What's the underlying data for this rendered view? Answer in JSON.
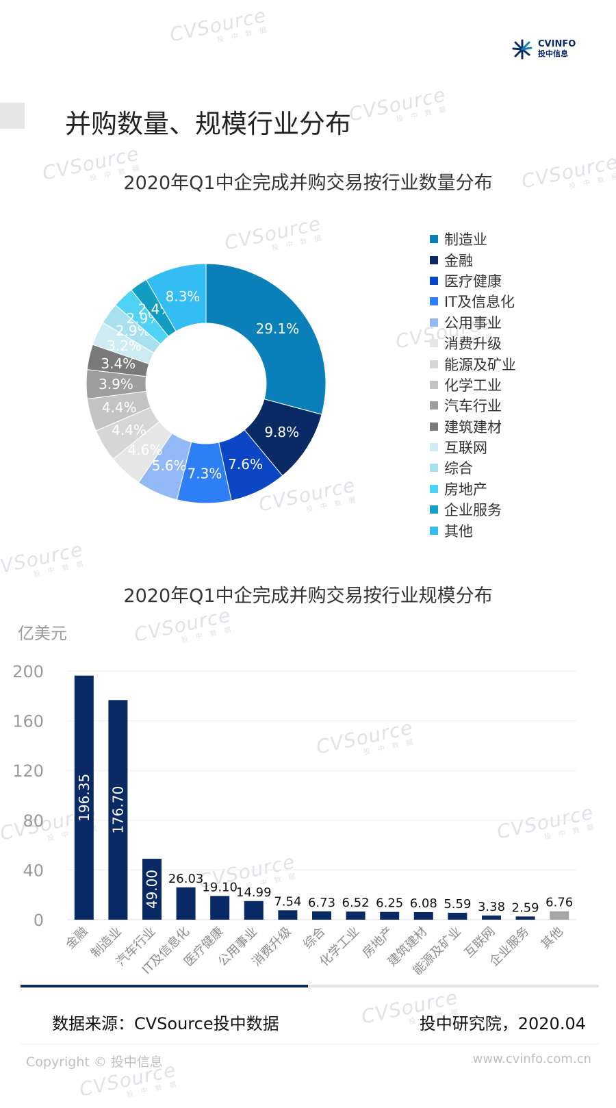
{
  "header": {
    "logo_main": "CVINFO",
    "logo_sub": "投中信息",
    "page_title": "并购数量、规模行业分布"
  },
  "watermark": {
    "text": "CVSource",
    "sub": "投 中 数 据"
  },
  "colors": {
    "navy": "#0a2a66",
    "accent": "#0a7fb8"
  },
  "chart_data": [
    {
      "type": "pie",
      "title": "2020年Q1中企完成并购交易按行业数量分布",
      "donut": true,
      "categories": [
        "制造业",
        "金融",
        "医疗健康",
        "IT及信息化",
        "公用事业",
        "消费升级",
        "能源及矿业",
        "化学工业",
        "汽车行业",
        "建筑建材",
        "互联网",
        "综合",
        "房地产",
        "企业服务",
        "其他"
      ],
      "values": [
        29.1,
        9.8,
        7.6,
        7.3,
        5.6,
        4.6,
        4.4,
        4.4,
        3.9,
        3.4,
        3.2,
        2.9,
        2.9,
        2.4,
        8.3
      ],
      "labels": [
        "29.1%",
        "9.8%",
        "7.6%",
        "7.3%",
        "5.6%",
        "4.6%",
        "4.4%",
        "4.4%",
        "3.9%",
        "3.4%",
        "3.2%",
        "2.9%",
        "2.9%",
        "2.4%",
        "8.3%"
      ],
      "colors": [
        "#0a7fb8",
        "#0a2a66",
        "#0b46c4",
        "#2e7ff5",
        "#92b8f5",
        "#e6e6e6",
        "#d6d6d6",
        "#c3c3c3",
        "#9e9e9e",
        "#7a7a7a",
        "#cdebf3",
        "#a9e0ee",
        "#4fd3f5",
        "#129ec3",
        "#34bdf2"
      ],
      "legend": "right"
    },
    {
      "type": "bar",
      "title": "2020年Q1中企完成并购交易按行业规模分布",
      "ylabel": "亿美元",
      "ylim": [
        0,
        200
      ],
      "yticks": [
        0,
        40,
        80,
        120,
        160,
        200
      ],
      "categories": [
        "金融",
        "制造业",
        "汽车行业",
        "IT及信息化",
        "医疗健康",
        "公用事业",
        "消费升级",
        "综合",
        "化学工业",
        "房地产",
        "建筑建材",
        "能源及矿业",
        "互联网",
        "企业服务",
        "其他"
      ],
      "values": [
        196.35,
        176.7,
        49.0,
        26.03,
        19.1,
        14.99,
        7.54,
        6.73,
        6.52,
        6.25,
        6.08,
        5.59,
        3.38,
        2.59,
        6.76
      ],
      "labels": [
        "196.35",
        "176.70",
        "49.00",
        "26.03",
        "19.10",
        "14.99",
        "7.54",
        "6.73",
        "6.52",
        "6.25",
        "6.08",
        "5.59",
        "3.38",
        "2.59",
        "6.76"
      ],
      "colors": [
        "#0a2a66",
        "#0a2a66",
        "#0a2a66",
        "#0a2a66",
        "#0a2a66",
        "#0a2a66",
        "#0a2a66",
        "#0a2a66",
        "#0a2a66",
        "#0a2a66",
        "#0a2a66",
        "#0a2a66",
        "#0a2a66",
        "#0a2a66",
        "#a6a6a6"
      ],
      "grid": true
    }
  ],
  "footer": {
    "source": "数据来源：CVSource投中数据",
    "research": "投中研究院，2020.04",
    "copyright": "Copyright © 投中信息",
    "site": "www.cvinfo.com.cn"
  }
}
